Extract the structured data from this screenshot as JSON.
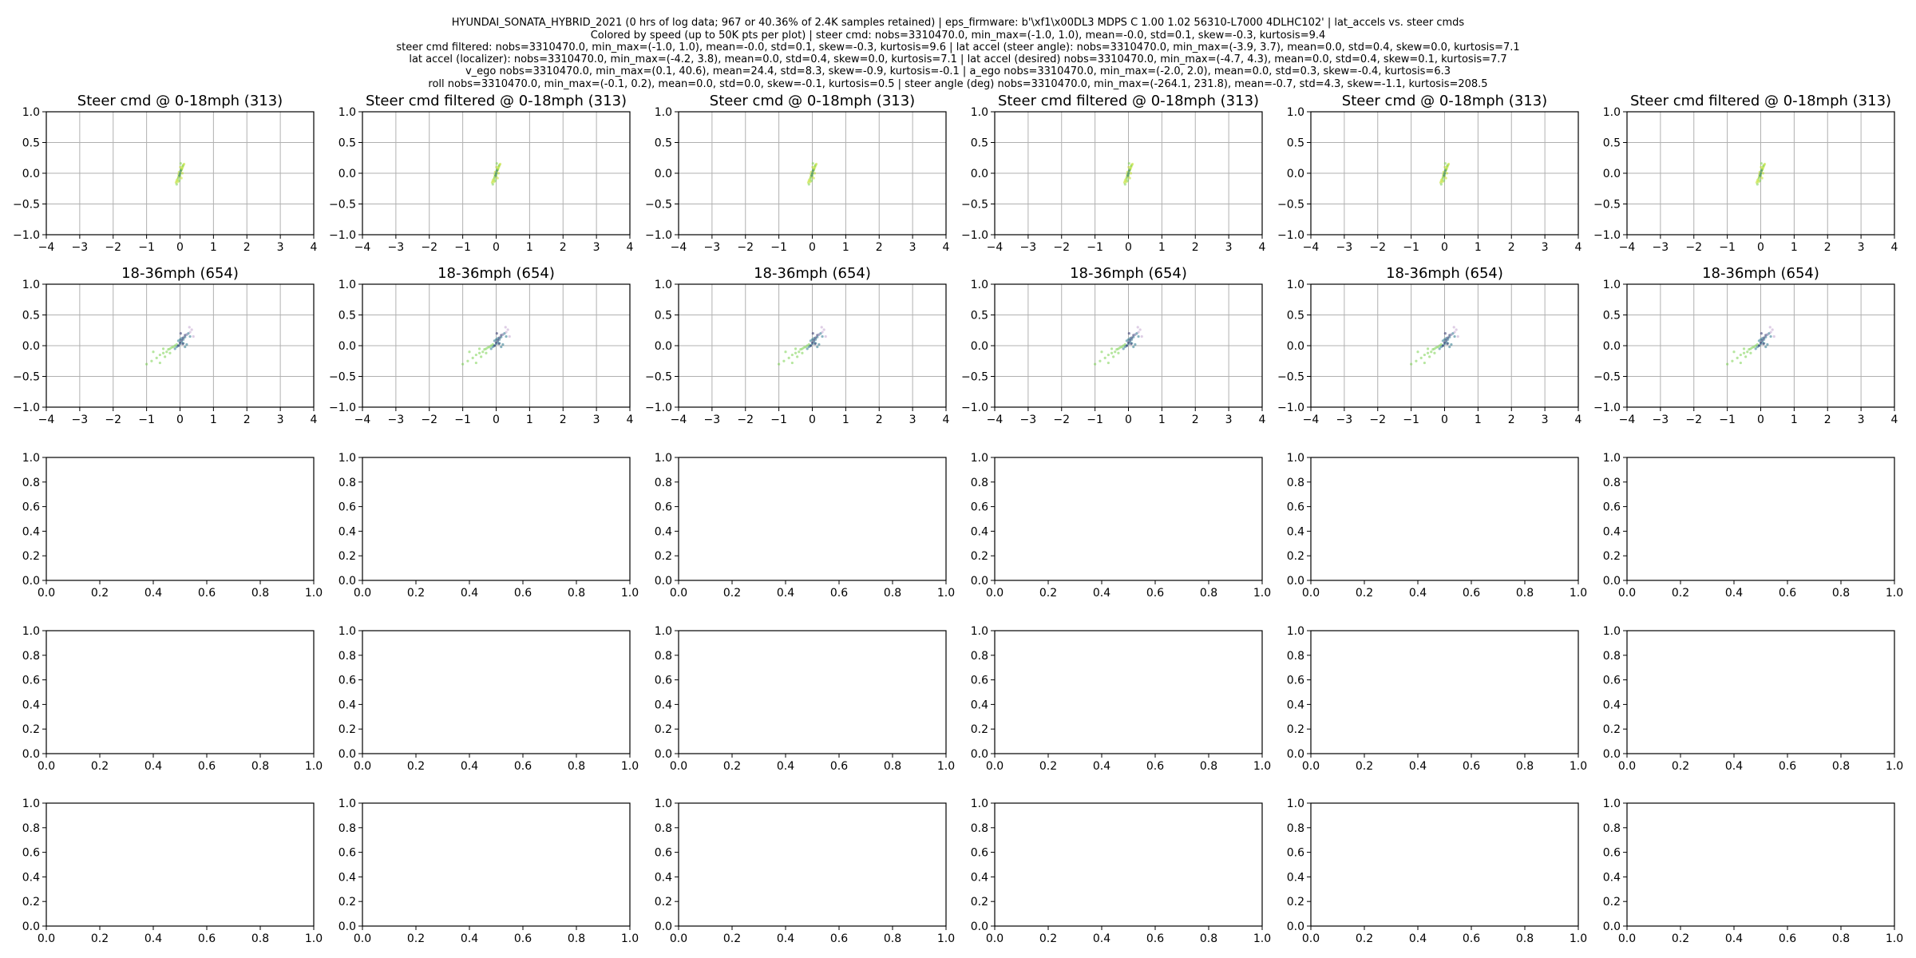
{
  "figure": {
    "suptitle_lines": [
      "HYUNDAI_SONATA_HYBRID_2021 (0 hrs of log data; 967 or 40.36% of 2.4K samples retained) | eps_firmware: b'\\xf1\\x00DL3 MDPS C 1.00 1.02 56310-L7000 4DLHC102' | lat_accels vs. steer cmds",
      "Colored by  speed (up to 50K pts per plot) | steer cmd: nobs=3310470.0, min_max=(-1.0, 1.0), mean=-0.0, std=0.1, skew=-0.3, kurtosis=9.4",
      "steer cmd filtered: nobs=3310470.0, min_max=(-1.0, 1.0), mean=-0.0, std=0.1, skew=-0.3, kurtosis=9.6 | lat accel (steer angle): nobs=3310470.0, min_max=(-3.9, 3.7), mean=0.0, std=0.4, skew=0.0, kurtosis=7.1",
      "lat accel (localizer): nobs=3310470.0, min_max=(-4.2, 3.8), mean=0.0, std=0.4, skew=0.0, kurtosis=7.1 | lat accel (desired) nobs=3310470.0, min_max=(-4.7, 4.3), mean=0.0, std=0.4, skew=0.1, kurtosis=7.7",
      "v_ego nobs=3310470.0, min_max=(0.1, 40.6), mean=24.4, std=8.3, skew=-0.9, kurtosis=-0.1 | a_ego nobs=3310470.0, min_max=(-2.0, 2.0), mean=0.0, std=0.3, skew=-0.4, kurtosis=6.3",
      "roll nobs=3310470.0, min_max=(-0.1, 0.2), mean=0.0, std=0.0, skew=-0.1, kurtosis=0.5 | steer angle (deg) nobs=3310470.0, min_max=(-264.1, 231.8), mean=-0.7, std=4.3, skew=-1.1, kurtosis=208.5"
    ],
    "rows": 5,
    "cols": 6
  },
  "chart_data": [
    {
      "type": "scatter",
      "row": 0,
      "titles": [
        "Steer cmd @ 0-18mph (313)",
        "Steer cmd filtered @ 0-18mph (313)",
        "Steer cmd @ 0-18mph (313)",
        "Steer cmd filtered @ 0-18mph (313)",
        "Steer cmd @ 0-18mph (313)",
        "Steer cmd filtered @ 0-18mph (313)"
      ],
      "xlim": [
        -4,
        4
      ],
      "ylim": [
        -1,
        1
      ],
      "xticks": [
        "−4",
        "−3",
        "−2",
        "−1",
        "0",
        "1",
        "2",
        "3",
        "4"
      ],
      "yticks": [
        "−1.0",
        "−0.5",
        "0.0",
        "0.5",
        "1.0"
      ],
      "grid": true,
      "series": [
        {
          "color": "#bddf26",
          "x": [
            -0.12,
            -0.08,
            -0.05,
            -0.02,
            0.0,
            0.02,
            0.05,
            0.08,
            0.1,
            0.12,
            -0.1,
            -0.04,
            0.03,
            0.06,
            0.0,
            0.01,
            -0.03,
            0.04,
            0.07,
            -0.06
          ],
          "y": [
            -0.15,
            -0.1,
            -0.06,
            -0.03,
            0.0,
            0.03,
            0.06,
            0.1,
            0.13,
            0.15,
            -0.12,
            -0.02,
            0.05,
            0.08,
            -0.05,
            0.1,
            0.02,
            -0.08,
            0.0,
            -0.14
          ]
        },
        {
          "color": "#7ad151",
          "x": [
            -0.1,
            -0.05,
            0.0,
            0.04,
            0.08,
            0.02,
            -0.02
          ],
          "y": [
            -0.18,
            -0.08,
            -0.02,
            0.06,
            0.12,
            0.16,
            -0.12
          ]
        },
        {
          "color": "#2a788e",
          "x": [
            0.0,
            0.02,
            -0.02
          ],
          "y": [
            0.0,
            0.04,
            -0.04
          ]
        }
      ]
    },
    {
      "type": "scatter",
      "row": 1,
      "titles": [
        "18-36mph (654)",
        "18-36mph (654)",
        "18-36mph (654)",
        "18-36mph (654)",
        "18-36mph (654)",
        "18-36mph (654)"
      ],
      "xlim": [
        -4,
        4
      ],
      "ylim": [
        -1,
        1
      ],
      "xticks": [
        "−4",
        "−3",
        "−2",
        "−1",
        "0",
        "1",
        "2",
        "3",
        "4"
      ],
      "yticks": [
        "−1.0",
        "−0.5",
        "0.0",
        "0.5",
        "1.0"
      ],
      "grid": true,
      "series": [
        {
          "color": "#7ad151",
          "x": [
            -1.0,
            -0.85,
            -0.7,
            -0.6,
            -0.5,
            -0.4,
            -0.35,
            -0.3,
            -0.25,
            -0.2,
            -0.15,
            -0.1,
            -0.6,
            -0.45,
            -0.3,
            -0.5,
            -0.8
          ],
          "y": [
            -0.3,
            -0.25,
            -0.2,
            -0.15,
            -0.12,
            -0.1,
            -0.06,
            -0.05,
            -0.03,
            -0.02,
            0.0,
            0.02,
            -0.28,
            -0.18,
            -0.12,
            -0.05,
            -0.1
          ]
        },
        {
          "color": "#2a788e",
          "x": [
            -0.15,
            -0.1,
            -0.05,
            0.0,
            0.05,
            0.1,
            0.15,
            0.2,
            0.25,
            0.3,
            0.0,
            0.1,
            -0.05,
            0.2,
            0.05,
            0.15
          ],
          "y": [
            -0.05,
            -0.02,
            0.0,
            0.03,
            0.06,
            0.1,
            0.14,
            0.18,
            0.2,
            0.15,
            0.1,
            0.04,
            0.08,
            0.02,
            0.12,
            -0.02
          ]
        },
        {
          "color": "#31356e",
          "x": [
            -0.05,
            0.0,
            0.05,
            0.1,
            0.15,
            0.02,
            0.08
          ],
          "y": [
            0.0,
            0.05,
            0.09,
            0.13,
            0.17,
            0.2,
            0.03
          ]
        },
        {
          "color": "#c2a5cf",
          "x": [
            0.2,
            0.3,
            0.35,
            0.4,
            0.28
          ],
          "y": [
            0.18,
            0.22,
            0.26,
            0.15,
            0.3
          ]
        }
      ]
    },
    {
      "type": "scatter",
      "row": 2,
      "empty": true,
      "xlim": [
        0,
        1
      ],
      "ylim": [
        0,
        1
      ],
      "xticks": [
        "0.0",
        "0.2",
        "0.4",
        "0.6",
        "0.8",
        "1.0"
      ],
      "yticks": [
        "0.0",
        "0.2",
        "0.4",
        "0.6",
        "0.8",
        "1.0"
      ],
      "grid": false
    },
    {
      "type": "scatter",
      "row": 3,
      "empty": true,
      "xlim": [
        0,
        1
      ],
      "ylim": [
        0,
        1
      ],
      "xticks": [
        "0.0",
        "0.2",
        "0.4",
        "0.6",
        "0.8",
        "1.0"
      ],
      "yticks": [
        "0.0",
        "0.2",
        "0.4",
        "0.6",
        "0.8",
        "1.0"
      ],
      "grid": false
    },
    {
      "type": "scatter",
      "row": 4,
      "empty": true,
      "xlim": [
        0,
        1
      ],
      "ylim": [
        0,
        1
      ],
      "xticks": [
        "0.0",
        "0.2",
        "0.4",
        "0.6",
        "0.8",
        "1.0"
      ],
      "yticks": [
        "0.0",
        "0.2",
        "0.4",
        "0.6",
        "0.8",
        "1.0"
      ],
      "grid": false
    }
  ]
}
